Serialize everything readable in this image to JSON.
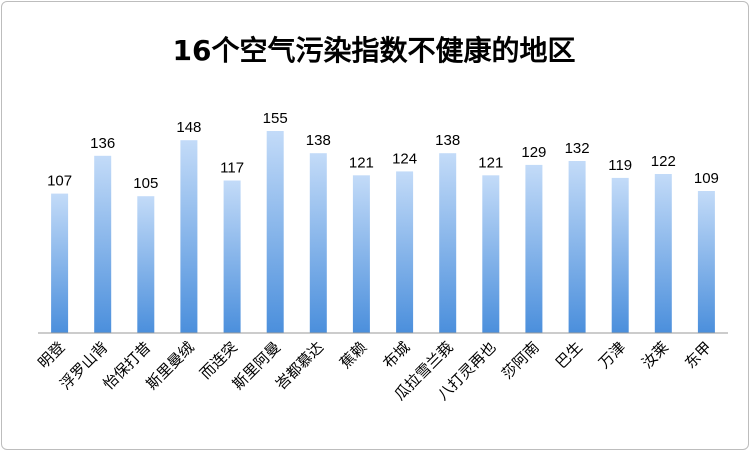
{
  "chart_data": {
    "type": "bar",
    "title": "16个空气污染指数不健康的地区",
    "categories": [
      "明登",
      "浮罗山背",
      "怡保打昔",
      "斯里曼绒",
      "而连突",
      "斯里阿曼",
      "峇都慕达",
      "蕉赖",
      "布城",
      "瓜拉雪兰莪",
      "八打灵再也",
      "莎阿南",
      "巴生",
      "万津",
      "汝莱",
      "东甲"
    ],
    "values": [
      107,
      136,
      105,
      148,
      117,
      155,
      138,
      121,
      124,
      138,
      121,
      129,
      132,
      119,
      122,
      109
    ],
    "xlabel": "",
    "ylabel": "",
    "ylim": [
      0,
      180
    ],
    "grid": false,
    "legend": "none",
    "bar_color_top": "#c3dbf8",
    "bar_color_bottom": "#4b8fdc",
    "axis_color": "#9a9a9a"
  }
}
